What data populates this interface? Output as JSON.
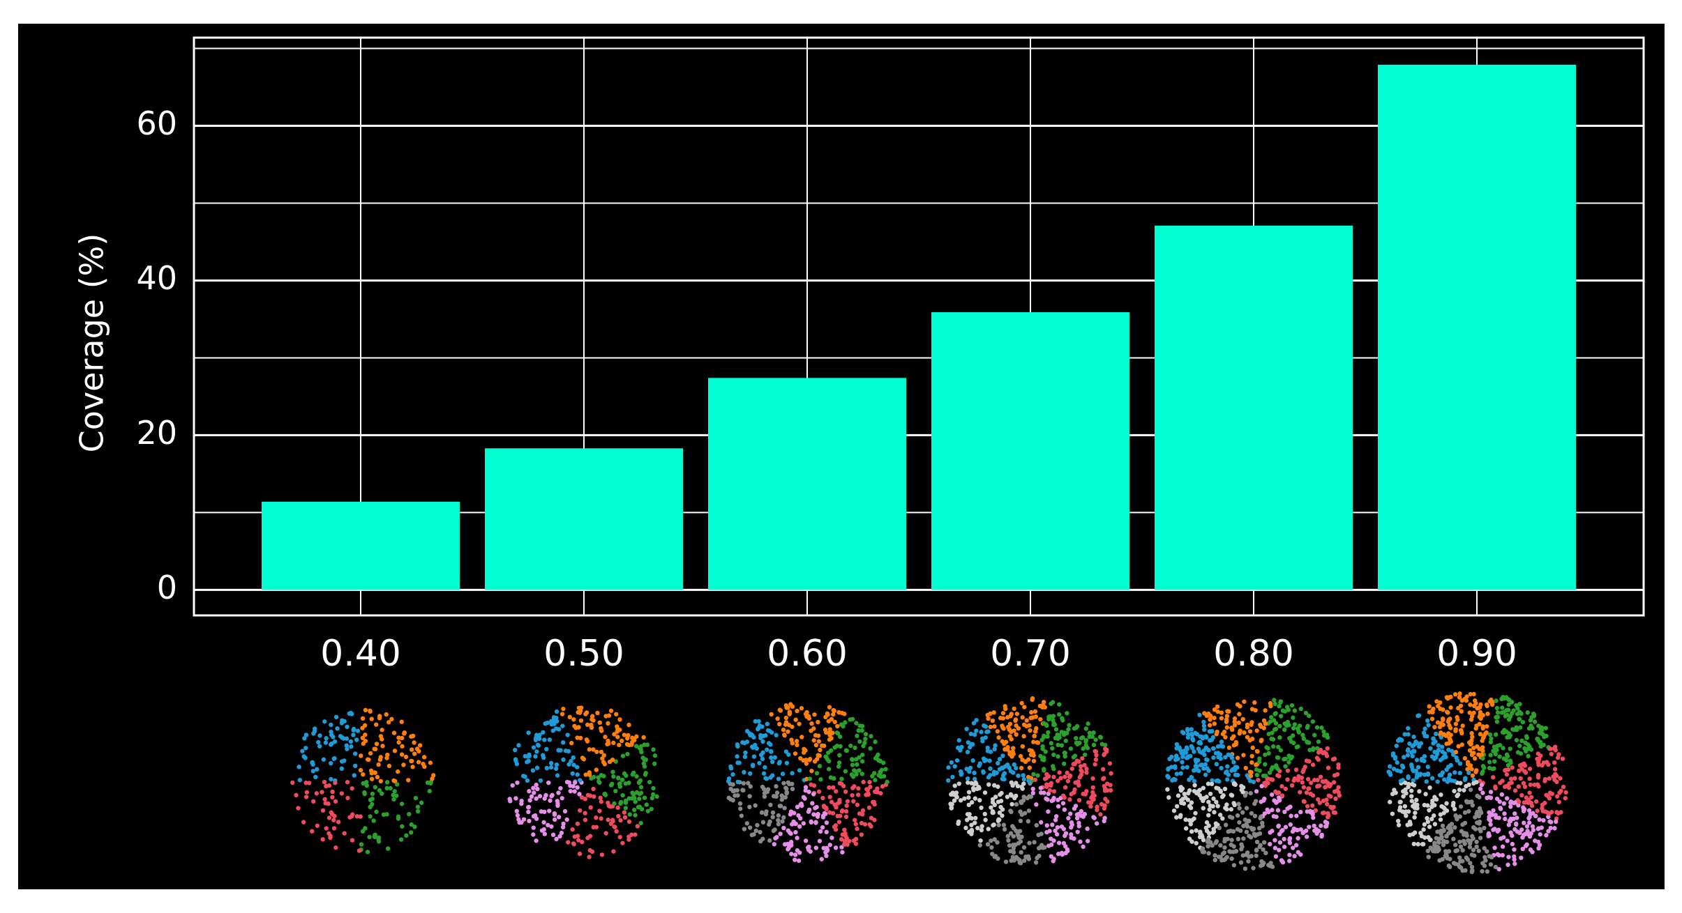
{
  "chart_data": {
    "type": "bar",
    "y_label": "Coverage (%)",
    "categories": [
      "0.40",
      "0.50",
      "0.60",
      "0.70",
      "0.80",
      "0.90"
    ],
    "values": [
      11.4,
      18.3,
      27.4,
      35.9,
      47.1,
      67.9
    ],
    "color": "#00ffd2",
    "ylim": [
      -3.3,
      71.4
    ],
    "yticks": [
      0,
      20,
      40,
      60
    ],
    "minor_yticks": [
      10,
      30,
      50,
      70
    ],
    "grid": true
  }
}
